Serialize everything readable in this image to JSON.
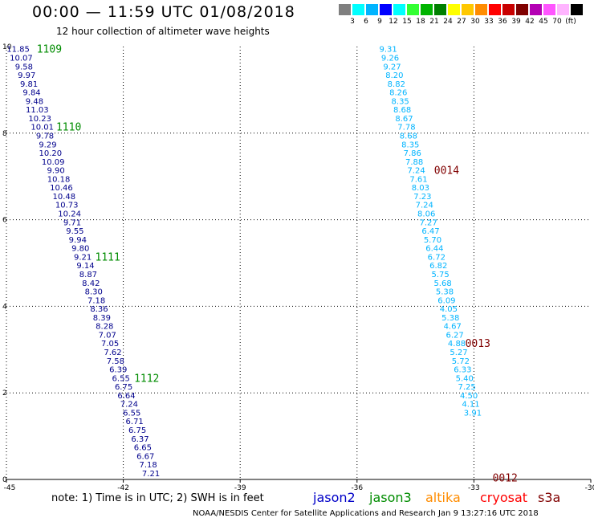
{
  "header": {
    "title": "00:00 — 11:59 UTC 01/08/2018",
    "subtitle": "12 hour collection of altimeter wave heights"
  },
  "color_scale": {
    "colors": [
      "#7f7f7f",
      "#00ffff",
      "#00b4ff",
      "#0000ff",
      "#00ffff",
      "#33ff33",
      "#00b400",
      "#008000",
      "#ffff00",
      "#ffc800",
      "#ff8c00",
      "#ff0000",
      "#c80000",
      "#800000",
      "#b400b4",
      "#ff55ff",
      "#ffb4ff",
      "#000000"
    ],
    "labels": [
      "3",
      "6",
      "9",
      "12",
      "15",
      "18",
      "21",
      "24",
      "27",
      "30",
      "33",
      "36",
      "39",
      "42",
      "45",
      "70",
      "(ft)"
    ]
  },
  "footer": {
    "note": "note:  1) Time is in UTC;  2) SWH is in feet",
    "credit": "NOAA/NESDIS Center for Satellite Applications and Research    Jan  9 13:27:16 UTC 2018"
  },
  "legend": [
    {
      "name": "jason2",
      "color": "#0000c8"
    },
    {
      "name": "jason3",
      "color": "#008c00"
    },
    {
      "name": "altika",
      "color": "#ff8c00"
    },
    {
      "name": "cryosat",
      "color": "#ff0000"
    },
    {
      "name": "s3a",
      "color": "#800000"
    }
  ],
  "chart_data": {
    "type": "scatter",
    "title": "00:00 — 11:59 UTC 01/08/2018",
    "subtitle": "12 hour collection of altimeter wave heights",
    "xlim": [
      -45,
      -30
    ],
    "ylim": [
      0,
      10
    ],
    "x_ticks": [
      "-45",
      "-42",
      "-39",
      "-36",
      "-33",
      "-30"
    ],
    "y_ticks": [
      "0",
      "2",
      "4",
      "6",
      "8",
      "10"
    ],
    "grid": true,
    "series": [
      {
        "name": "jason2",
        "color": "#00008c",
        "points": [
          [
            -44.7,
            9.95,
            "11.85"
          ],
          [
            -44.62,
            9.75,
            "10.07"
          ],
          [
            -44.55,
            9.55,
            "9.58"
          ],
          [
            -44.48,
            9.35,
            "9.97"
          ],
          [
            -44.42,
            9.15,
            "9.81"
          ],
          [
            -44.35,
            8.95,
            "9.84"
          ],
          [
            -44.28,
            8.75,
            "9.48"
          ],
          [
            -44.21,
            8.55,
            "11.03"
          ],
          [
            -44.14,
            8.35,
            "10.23"
          ],
          [
            -44.08,
            8.15,
            "10.01"
          ],
          [
            -44.01,
            7.95,
            "9.78"
          ],
          [
            -43.94,
            7.75,
            "9.29"
          ],
          [
            -43.87,
            7.55,
            "10.20"
          ],
          [
            -43.8,
            7.35,
            "10.09"
          ],
          [
            -43.73,
            7.15,
            "9.90"
          ],
          [
            -43.66,
            6.95,
            "10.18"
          ],
          [
            -43.59,
            6.75,
            "10.46"
          ],
          [
            -43.52,
            6.55,
            "10.48"
          ],
          [
            -43.45,
            6.35,
            "10.73"
          ],
          [
            -43.38,
            6.15,
            "10.24"
          ],
          [
            -43.31,
            5.95,
            "9.71"
          ],
          [
            -43.24,
            5.75,
            "9.55"
          ],
          [
            -43.17,
            5.55,
            "9.94"
          ],
          [
            -43.1,
            5.35,
            "9.80"
          ],
          [
            -43.04,
            5.15,
            "9.21"
          ],
          [
            -42.97,
            4.95,
            "9.14"
          ],
          [
            -42.9,
            4.75,
            "8.87"
          ],
          [
            -42.83,
            4.55,
            "8.42"
          ],
          [
            -42.76,
            4.35,
            "8.30"
          ],
          [
            -42.69,
            4.15,
            "7.18"
          ],
          [
            -42.62,
            3.95,
            "8.36"
          ],
          [
            -42.55,
            3.75,
            "8.39"
          ],
          [
            -42.48,
            3.55,
            "8.28"
          ],
          [
            -42.41,
            3.35,
            "7.07"
          ],
          [
            -42.34,
            3.15,
            "7.05"
          ],
          [
            -42.27,
            2.95,
            "7.62"
          ],
          [
            -42.2,
            2.75,
            "7.58"
          ],
          [
            -42.13,
            2.55,
            "6.39"
          ],
          [
            -42.06,
            2.35,
            "6.55"
          ],
          [
            -41.99,
            2.15,
            "6.75"
          ],
          [
            -41.92,
            1.95,
            "6.64"
          ],
          [
            -41.85,
            1.75,
            "7.24"
          ],
          [
            -41.78,
            1.55,
            "6.55"
          ],
          [
            -41.71,
            1.35,
            "6.71"
          ],
          [
            -41.64,
            1.15,
            "6.75"
          ],
          [
            -41.57,
            0.95,
            "6.37"
          ],
          [
            -41.5,
            0.75,
            "6.65"
          ],
          [
            -41.43,
            0.55,
            "6.67"
          ],
          [
            -41.36,
            0.35,
            "7.18"
          ],
          [
            -41.29,
            0.15,
            "7.21"
          ]
        ]
      },
      {
        "name": "s3a",
        "color": "#00b4ff",
        "points": [
          [
            -35.2,
            9.95,
            "9.31"
          ],
          [
            -35.15,
            9.75,
            "9.26"
          ],
          [
            -35.1,
            9.55,
            "9.27"
          ],
          [
            -35.04,
            9.35,
            "8.20"
          ],
          [
            -34.99,
            9.15,
            "8.82"
          ],
          [
            -34.94,
            8.95,
            "8.26"
          ],
          [
            -34.89,
            8.75,
            "8.35"
          ],
          [
            -34.84,
            8.55,
            "8.68"
          ],
          [
            -34.79,
            8.35,
            "8.67"
          ],
          [
            -34.73,
            8.15,
            "7.78"
          ],
          [
            -34.68,
            7.95,
            "8.68"
          ],
          [
            -34.63,
            7.75,
            "8.35"
          ],
          [
            -34.58,
            7.55,
            "7.86"
          ],
          [
            -34.53,
            7.35,
            "7.88"
          ],
          [
            -34.48,
            7.15,
            "7.24"
          ],
          [
            -34.42,
            6.95,
            "7.61"
          ],
          [
            -34.37,
            6.75,
            "8.03"
          ],
          [
            -34.32,
            6.55,
            "7.23"
          ],
          [
            -34.27,
            6.35,
            "7.24"
          ],
          [
            -34.22,
            6.15,
            "8.06"
          ],
          [
            -34.17,
            5.95,
            "7.27"
          ],
          [
            -34.11,
            5.75,
            "6.47"
          ],
          [
            -34.06,
            5.55,
            "5.70"
          ],
          [
            -34.01,
            5.35,
            "6.44"
          ],
          [
            -33.96,
            5.15,
            "6.72"
          ],
          [
            -33.91,
            4.95,
            "6.82"
          ],
          [
            -33.86,
            4.75,
            "5.75"
          ],
          [
            -33.8,
            4.55,
            "5.68"
          ],
          [
            -33.75,
            4.35,
            "5.38"
          ],
          [
            -33.7,
            4.15,
            "6.09"
          ],
          [
            -33.65,
            3.95,
            "4.05"
          ],
          [
            -33.6,
            3.75,
            "5.38"
          ],
          [
            -33.55,
            3.55,
            "4.67"
          ],
          [
            -33.49,
            3.35,
            "6.27"
          ],
          [
            -33.44,
            3.15,
            "4.88"
          ],
          [
            -33.39,
            2.95,
            "5.27"
          ],
          [
            -33.34,
            2.75,
            "5.72"
          ],
          [
            -33.29,
            2.55,
            "6.33"
          ],
          [
            -33.24,
            2.35,
            "5.40"
          ],
          [
            -33.18,
            2.15,
            "7.25"
          ],
          [
            -33.13,
            1.95,
            "4.50"
          ],
          [
            -33.08,
            1.75,
            "4.11"
          ],
          [
            -33.03,
            1.55,
            "3.91"
          ]
        ]
      }
    ],
    "pass_labels": [
      {
        "text": "1109",
        "x": -43.9,
        "y": 9.95,
        "series": "jason3"
      },
      {
        "text": "1110",
        "x": -43.4,
        "y": 8.15,
        "series": "jason3"
      },
      {
        "text": "1111",
        "x": -42.4,
        "y": 5.15,
        "series": "jason3"
      },
      {
        "text": "1112",
        "x": -41.4,
        "y": 2.35,
        "series": "jason3"
      },
      {
        "text": "0014",
        "x": -33.7,
        "y": 7.15,
        "series": "s3a"
      },
      {
        "text": "0013",
        "x": -32.9,
        "y": 3.15,
        "series": "s3a"
      },
      {
        "text": "0012",
        "x": -32.2,
        "y": 0.05,
        "series": "s3a"
      }
    ]
  }
}
